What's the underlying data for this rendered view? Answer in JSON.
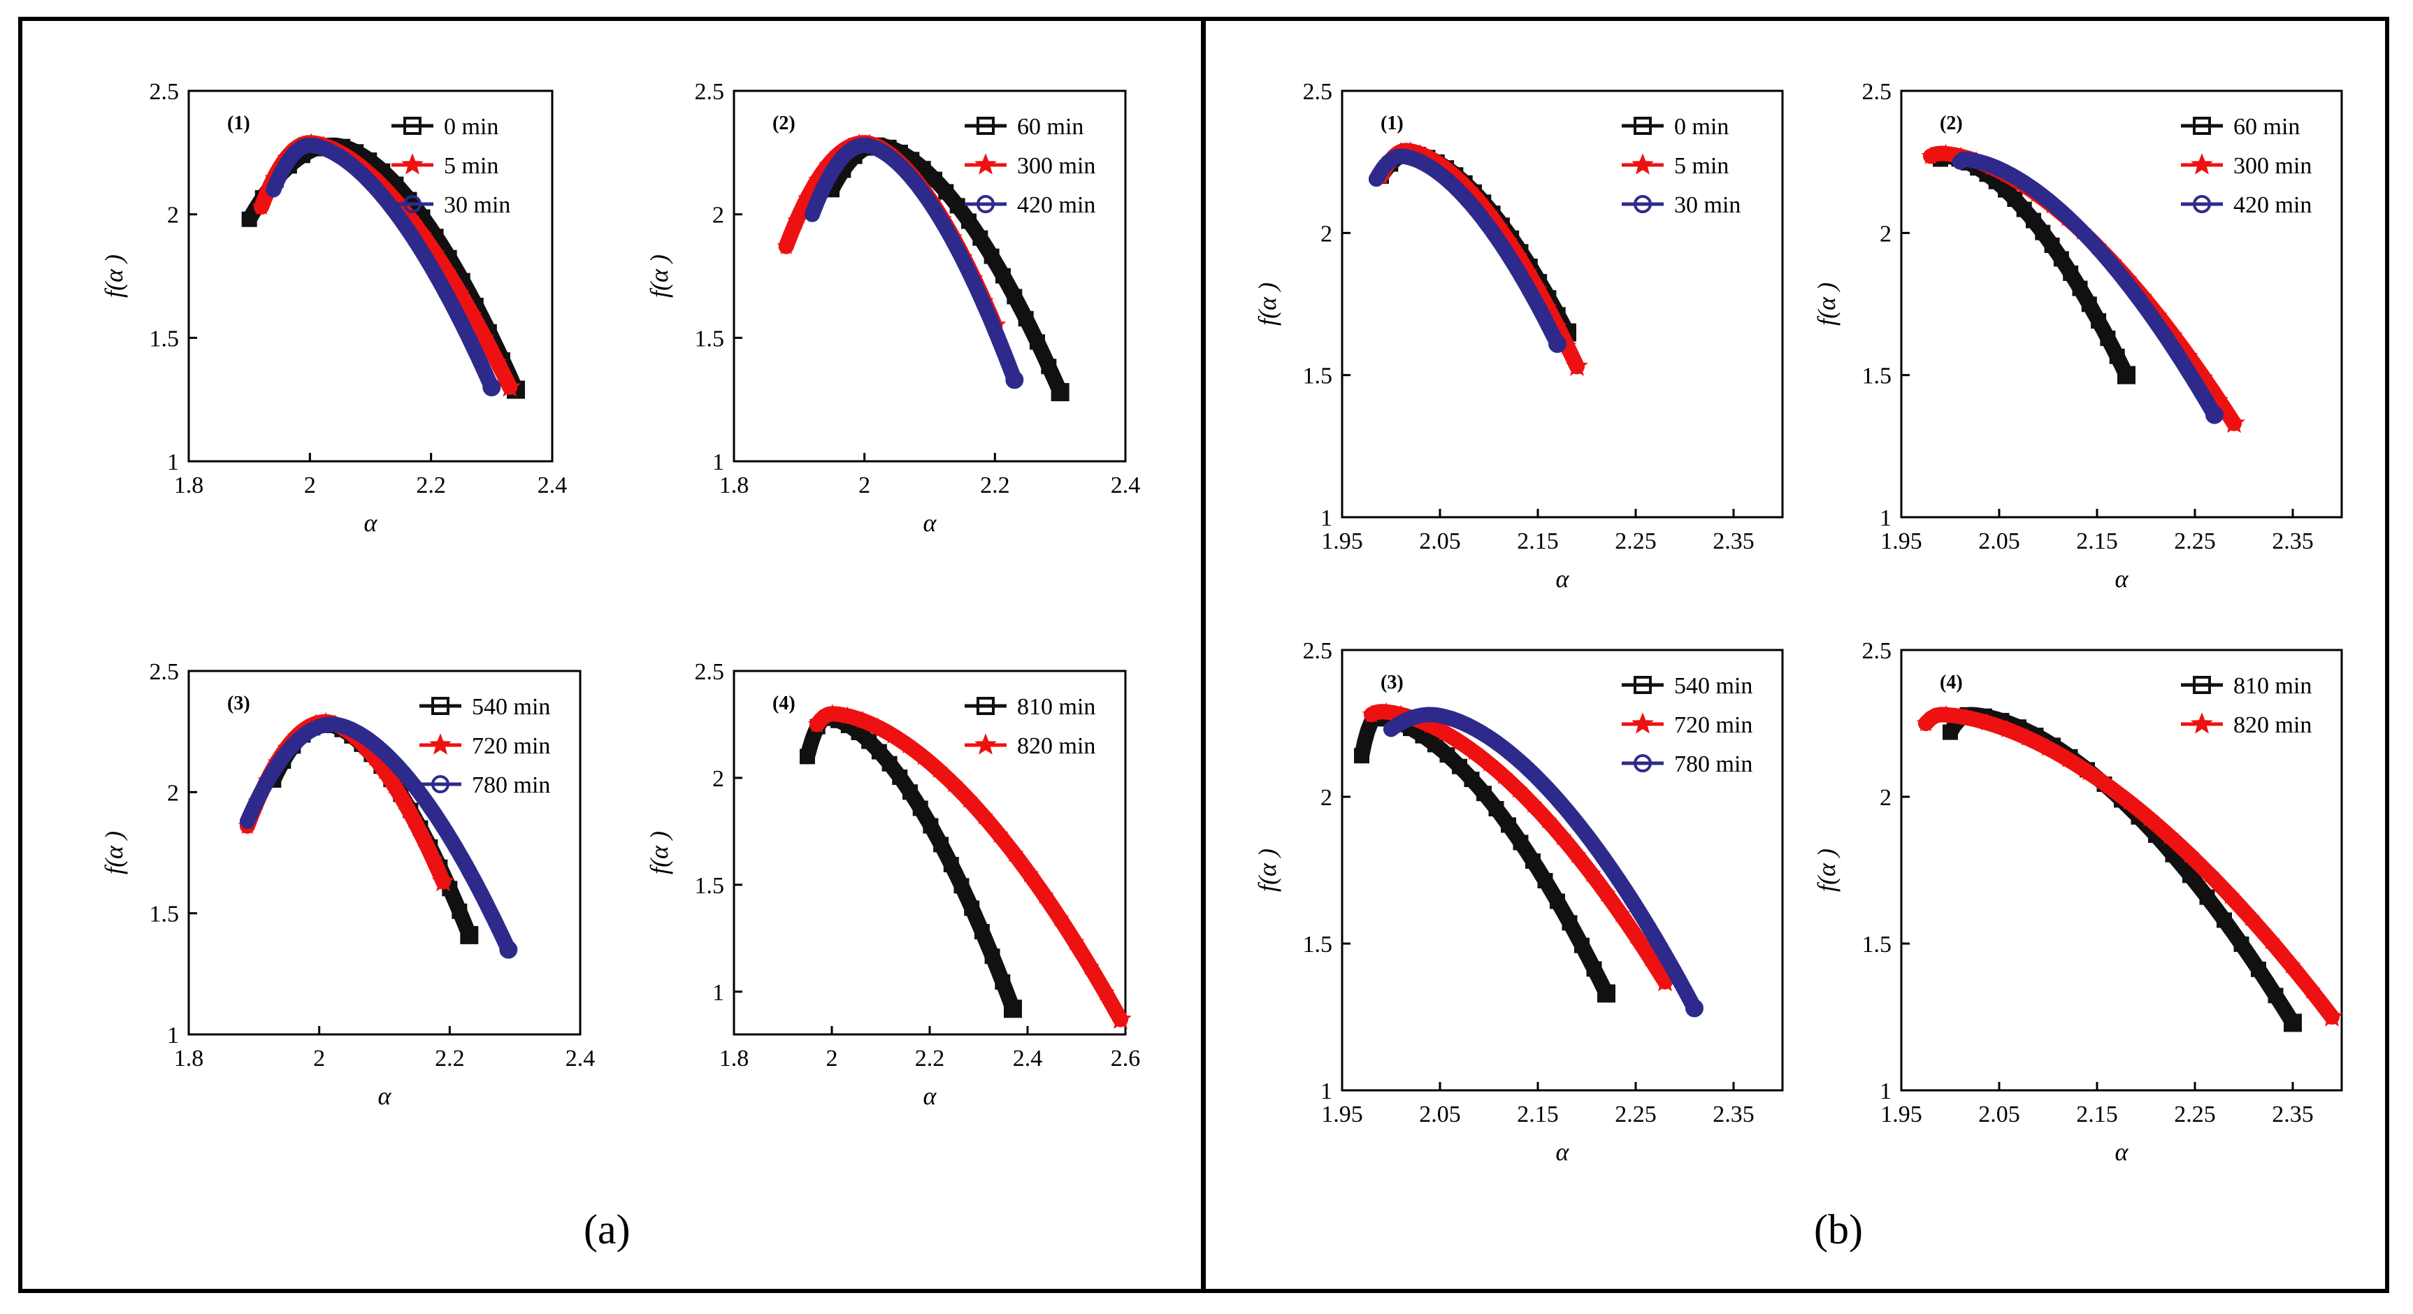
{
  "figure": {
    "panel_labels": {
      "a": "(a)",
      "b": "(b)"
    }
  },
  "colors": {
    "black": "#111111",
    "red": "#ee1111",
    "blue": "#2e2a8c"
  },
  "chart_data": [
    {
      "group": "a",
      "type": "line",
      "label": "(1)",
      "xlabel": "α",
      "ylabel": "f(α )",
      "xlim": [
        1.8,
        2.4
      ],
      "ylim": [
        1,
        2.5
      ],
      "xticks": [
        1.8,
        2,
        2.2,
        2.4
      ],
      "xticklabels": [
        "1.8",
        "2",
        "2.2",
        "2.4"
      ],
      "yticks": [
        1,
        1.5,
        2,
        2.5
      ],
      "yticklabels": [
        "1",
        "1.5",
        "2",
        "2.5"
      ],
      "series": [
        {
          "name": "0 min",
          "marker": "square",
          "color": "black",
          "x_start": 1.9,
          "y_start": 1.98,
          "x_peak": 2.04,
          "y_peak": 2.28,
          "x_end": 2.34,
          "y_end": 1.29
        },
        {
          "name": "5 min",
          "marker": "star",
          "color": "red",
          "x_start": 1.92,
          "y_start": 2.03,
          "x_peak": 2.0,
          "y_peak": 2.29,
          "x_end": 2.33,
          "y_end": 1.3
        },
        {
          "name": "30 min",
          "marker": "circle",
          "color": "blue",
          "x_start": 1.94,
          "y_start": 2.1,
          "x_peak": 2.0,
          "y_peak": 2.28,
          "x_end": 2.3,
          "y_end": 1.3
        }
      ]
    },
    {
      "group": "a",
      "type": "line",
      "label": "(2)",
      "xlabel": "α",
      "ylabel": "f(α )",
      "xlim": [
        1.8,
        2.4
      ],
      "ylim": [
        1,
        2.5
      ],
      "xticks": [
        1.8,
        2,
        2.2,
        2.4
      ],
      "xticklabels": [
        "1.8",
        "2",
        "2.2",
        "2.4"
      ],
      "yticks": [
        1,
        1.5,
        2,
        2.5
      ],
      "yticklabels": [
        "1",
        "1.5",
        "2",
        "2.5"
      ],
      "series": [
        {
          "name": "60 min",
          "marker": "square",
          "color": "black",
          "x_start": 1.95,
          "y_start": 2.1,
          "x_peak": 2.02,
          "y_peak": 2.28,
          "x_end": 2.3,
          "y_end": 1.28
        },
        {
          "name": "300 min",
          "marker": "star",
          "color": "red",
          "x_start": 1.88,
          "y_start": 1.87,
          "x_peak": 2.0,
          "y_peak": 2.29,
          "x_end": 2.2,
          "y_end": 1.55
        },
        {
          "name": "420 min",
          "marker": "circle",
          "color": "blue",
          "x_start": 1.92,
          "y_start": 2.0,
          "x_peak": 2.0,
          "y_peak": 2.28,
          "x_end": 2.23,
          "y_end": 1.33
        }
      ]
    },
    {
      "group": "a",
      "type": "line",
      "label": "(3)",
      "xlabel": "α",
      "ylabel": "f(α )",
      "xlim": [
        1.8,
        2.4
      ],
      "ylim": [
        1,
        2.5
      ],
      "xticks": [
        1.8,
        2,
        2.2,
        2.4
      ],
      "xticklabels": [
        "1.8",
        "2",
        "2.2",
        "2.4"
      ],
      "yticks": [
        1,
        1.5,
        2,
        2.5
      ],
      "yticklabels": [
        "1",
        "1.5",
        "2",
        "2.5"
      ],
      "series": [
        {
          "name": "540 min",
          "marker": "square",
          "color": "black",
          "x_start": 1.93,
          "y_start": 2.05,
          "x_peak": 2.01,
          "y_peak": 2.28,
          "x_end": 2.23,
          "y_end": 1.41
        },
        {
          "name": "720 min",
          "marker": "star",
          "color": "red",
          "x_start": 1.89,
          "y_start": 1.86,
          "x_peak": 2.01,
          "y_peak": 2.29,
          "x_end": 2.19,
          "y_end": 1.63
        },
        {
          "name": "780 min",
          "marker": "circle",
          "color": "blue",
          "x_start": 1.89,
          "y_start": 1.88,
          "x_peak": 2.02,
          "y_peak": 2.28,
          "x_end": 2.29,
          "y_end": 1.35
        }
      ]
    },
    {
      "group": "a",
      "type": "line",
      "label": "(4)",
      "xlabel": "α",
      "ylabel": "f(α )",
      "xlim": [
        1.8,
        2.6
      ],
      "ylim": [
        0.8,
        2.5
      ],
      "xticks": [
        1.8,
        2,
        2.2,
        2.4,
        2.6
      ],
      "xticklabels": [
        "1.8",
        "2",
        "2.2",
        "2.4",
        "2.6"
      ],
      "yticks": [
        1,
        1.5,
        2,
        2.5
      ],
      "yticklabels": [
        "1",
        "1.5",
        "2",
        "2.5"
      ],
      "series": [
        {
          "name": "810 min",
          "marker": "square",
          "color": "black",
          "x_start": 1.95,
          "y_start": 2.1,
          "x_peak": 1.99,
          "y_peak": 2.28,
          "x_end": 2.37,
          "y_end": 0.92
        },
        {
          "name": "820 min",
          "marker": "star",
          "color": "red",
          "x_start": 1.97,
          "y_start": 2.25,
          "x_peak": 2.0,
          "y_peak": 2.3,
          "x_end": 2.59,
          "y_end": 0.87
        }
      ]
    },
    {
      "group": "b",
      "type": "line",
      "label": "(1)",
      "xlabel": "α",
      "ylabel": "f(α )",
      "xlim": [
        1.95,
        2.4
      ],
      "ylim": [
        1,
        2.5
      ],
      "xticks": [
        1.95,
        2.05,
        2.15,
        2.25,
        2.35
      ],
      "xticklabels": [
        "1.95",
        "2.05",
        "2.15",
        "2.25",
        "2.35"
      ],
      "yticks": [
        1,
        1.5,
        2,
        2.5
      ],
      "yticklabels": [
        "1",
        "1.5",
        "2",
        "2.5"
      ],
      "series": [
        {
          "name": "0 min",
          "marker": "square",
          "color": "black",
          "x_start": 1.99,
          "y_start": 2.2,
          "x_peak": 2.02,
          "y_peak": 2.28,
          "x_end": 2.18,
          "y_end": 1.65
        },
        {
          "name": "5 min",
          "marker": "star",
          "color": "red",
          "x_start": 1.99,
          "y_start": 2.2,
          "x_peak": 2.015,
          "y_peak": 2.29,
          "x_end": 2.19,
          "y_end": 1.53
        },
        {
          "name": "30 min",
          "marker": "circle",
          "color": "blue",
          "x_start": 1.985,
          "y_start": 2.19,
          "x_peak": 2.01,
          "y_peak": 2.27,
          "x_end": 2.17,
          "y_end": 1.61
        }
      ]
    },
    {
      "group": "b",
      "type": "line",
      "label": "(2)",
      "xlabel": "α",
      "ylabel": "f(α )",
      "xlim": [
        1.95,
        2.4
      ],
      "ylim": [
        1,
        2.5
      ],
      "xticks": [
        1.95,
        2.05,
        2.15,
        2.25,
        2.35
      ],
      "xticklabels": [
        "1.95",
        "2.05",
        "2.15",
        "2.25",
        "2.35"
      ],
      "yticks": [
        1,
        1.5,
        2,
        2.5
      ],
      "yticklabels": [
        "1",
        "1.5",
        "2",
        "2.5"
      ],
      "series": [
        {
          "name": "60 min",
          "marker": "square",
          "color": "black",
          "x_start": 1.99,
          "y_start": 2.26,
          "x_peak": 1.995,
          "y_peak": 2.27,
          "x_end": 2.18,
          "y_end": 1.5
        },
        {
          "name": "300 min",
          "marker": "star",
          "color": "red",
          "x_start": 1.98,
          "y_start": 2.27,
          "x_peak": 1.99,
          "y_peak": 2.28,
          "x_end": 2.29,
          "y_end": 1.33
        },
        {
          "name": "420 min",
          "marker": "circle",
          "color": "blue",
          "x_start": 2.01,
          "y_start": 2.25,
          "x_peak": 2.012,
          "y_peak": 2.26,
          "x_end": 2.27,
          "y_end": 1.36
        }
      ]
    },
    {
      "group": "b",
      "type": "line",
      "label": "(3)",
      "xlabel": "α",
      "ylabel": "f(α )",
      "xlim": [
        1.95,
        2.4
      ],
      "ylim": [
        1,
        2.5
      ],
      "xticks": [
        1.95,
        2.05,
        2.15,
        2.25,
        2.35
      ],
      "xticklabels": [
        "1.95",
        "2.05",
        "2.15",
        "2.25",
        "2.35"
      ],
      "yticks": [
        1,
        1.5,
        2,
        2.5
      ],
      "yticklabels": [
        "1",
        "1.5",
        "2",
        "2.5"
      ],
      "series": [
        {
          "name": "540 min",
          "marker": "square",
          "color": "black",
          "x_start": 1.97,
          "y_start": 2.14,
          "x_peak": 1.985,
          "y_peak": 2.27,
          "x_end": 2.22,
          "y_end": 1.33
        },
        {
          "name": "720 min",
          "marker": "star",
          "color": "red",
          "x_start": 1.98,
          "y_start": 2.28,
          "x_peak": 1.99,
          "y_peak": 2.29,
          "x_end": 2.28,
          "y_end": 1.37
        },
        {
          "name": "780 min",
          "marker": "circle",
          "color": "blue",
          "x_start": 2.0,
          "y_start": 2.23,
          "x_peak": 2.04,
          "y_peak": 2.28,
          "x_end": 2.31,
          "y_end": 1.28
        }
      ]
    },
    {
      "group": "b",
      "type": "line",
      "label": "(4)",
      "xlabel": "α",
      "ylabel": "f(α )",
      "xlim": [
        1.95,
        2.4
      ],
      "ylim": [
        1,
        2.5
      ],
      "xticks": [
        1.95,
        2.05,
        2.15,
        2.25,
        2.35
      ],
      "xticklabels": [
        "1.95",
        "2.05",
        "2.15",
        "2.25",
        "2.35"
      ],
      "yticks": [
        1,
        1.5,
        2,
        2.5
      ],
      "yticklabels": [
        "1",
        "1.5",
        "2",
        "2.5"
      ],
      "series": [
        {
          "name": "810 min",
          "marker": "square",
          "color": "black",
          "x_start": 2.0,
          "y_start": 2.22,
          "x_peak": 2.02,
          "y_peak": 2.28,
          "x_end": 2.35,
          "y_end": 1.23
        },
        {
          "name": "820 min",
          "marker": "star",
          "color": "red",
          "x_start": 1.975,
          "y_start": 2.25,
          "x_peak": 1.99,
          "y_peak": 2.28,
          "x_end": 2.39,
          "y_end": 1.25
        }
      ]
    }
  ]
}
